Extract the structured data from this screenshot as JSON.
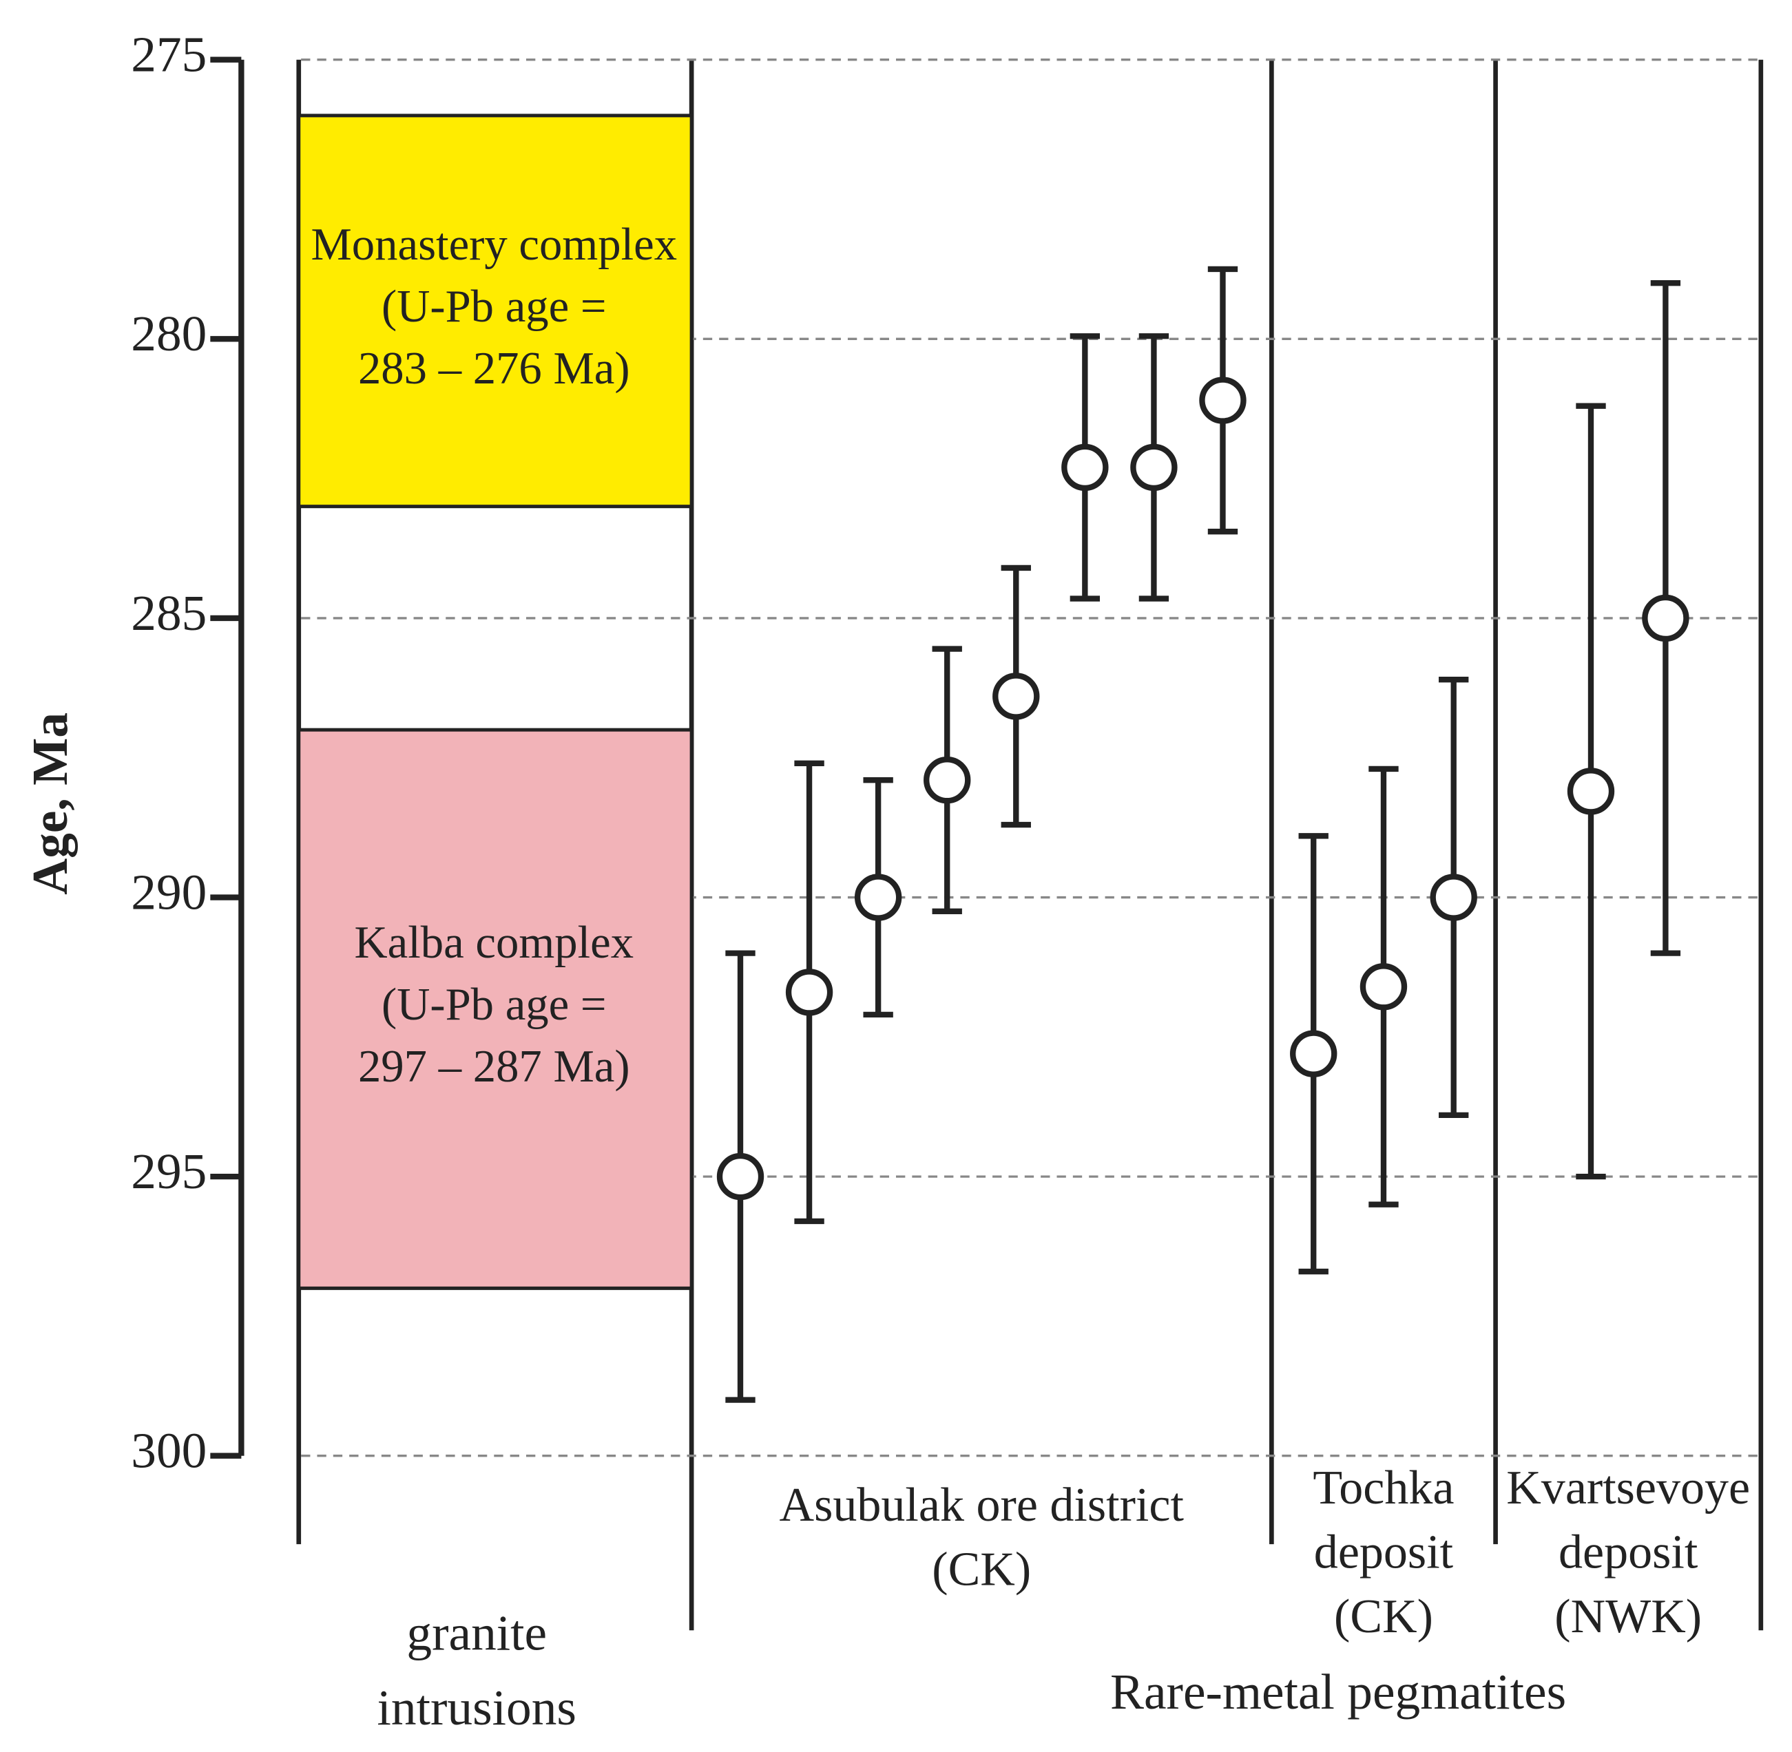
{
  "chart_data": {
    "type": "errorbar",
    "y_label": "Age, Ma",
    "ylim": [
      275,
      300
    ],
    "y_inverted": true,
    "yticks": [
      275,
      280,
      285,
      290,
      295,
      300
    ],
    "grid": true,
    "box_column": [
      "granite",
      "intrusions"
    ],
    "boxes": [
      {
        "lines": [
          "Monastery complex",
          "(U-Pb age =",
          "283 – 276 Ma)"
        ],
        "range": [
          276,
          283
        ],
        "color": "#ffec00"
      },
      {
        "lines": [
          "Kalba complex",
          "(U-Pb age =",
          "297 – 287 Ma)"
        ],
        "range": [
          287,
          297
        ],
        "color": "#f2b3b8"
      }
    ],
    "x_label": "Rare-metal pegmatites",
    "marker_color": "#222222",
    "series": [
      {
        "name": [
          "Asubulak ore district",
          "(CK)"
        ],
        "values": [
          295,
          291.7,
          290,
          287.9,
          286.4,
          282.3,
          282.3,
          281.1
        ],
        "errors": [
          4,
          4.1,
          2.1,
          2.35,
          2.3,
          2.35,
          2.35,
          2.35
        ]
      },
      {
        "name": [
          "Tochka",
          "deposit",
          "(CK)"
        ],
        "values": [
          292.8,
          291.6,
          290
        ],
        "errors": [
          3.9,
          3.9,
          3.9
        ]
      },
      {
        "name": [
          "Kvartsevoye",
          "deposit",
          "(NWK)"
        ],
        "values": [
          288.1,
          285
        ],
        "errors": [
          6.9,
          6
        ]
      }
    ]
  }
}
